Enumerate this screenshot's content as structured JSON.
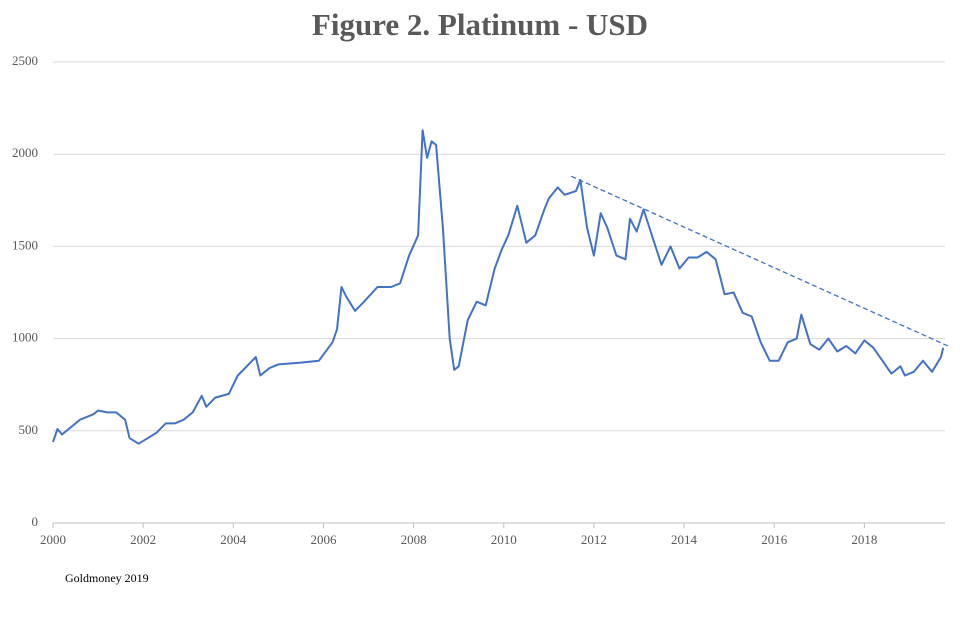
{
  "chart_data": {
    "type": "line",
    "title": "Figure 2. Platinum - USD",
    "source": "Goldmoney 2019",
    "x": [
      2000.0,
      2000.1,
      2000.2,
      2000.4,
      2000.6,
      2000.9,
      2001.0,
      2001.2,
      2001.4,
      2001.6,
      2001.7,
      2001.9,
      2002.1,
      2002.3,
      2002.5,
      2002.7,
      2002.9,
      2003.1,
      2003.3,
      2003.4,
      2003.6,
      2003.9,
      2004.1,
      2004.3,
      2004.5,
      2004.6,
      2004.8,
      2005.0,
      2005.5,
      2005.9,
      2006.2,
      2006.3,
      2006.4,
      2006.5,
      2006.7,
      2006.9,
      2007.2,
      2007.5,
      2007.7,
      2007.9,
      2008.1,
      2008.2,
      2008.3,
      2008.4,
      2008.5,
      2008.65,
      2008.8,
      2008.9,
      2009.0,
      2009.2,
      2009.4,
      2009.6,
      2009.8,
      2009.95,
      2010.1,
      2010.3,
      2010.5,
      2010.7,
      2010.9,
      2011.0,
      2011.2,
      2011.35,
      2011.6,
      2011.7,
      2011.85,
      2012.0,
      2012.15,
      2012.3,
      2012.5,
      2012.7,
      2012.8,
      2012.95,
      2013.1,
      2013.3,
      2013.5,
      2013.7,
      2013.9,
      2014.1,
      2014.3,
      2014.5,
      2014.7,
      2014.9,
      2015.1,
      2015.3,
      2015.5,
      2015.7,
      2015.9,
      2016.1,
      2016.3,
      2016.5,
      2016.6,
      2016.8,
      2017.0,
      2017.2,
      2017.4,
      2017.6,
      2017.8,
      2018.0,
      2018.2,
      2018.4,
      2018.6,
      2018.8,
      2018.9,
      2019.1,
      2019.3,
      2019.5,
      2019.7,
      2019.75
    ],
    "series": [
      {
        "name": "Platinum",
        "color": "#4472c4",
        "values": [
          440,
          510,
          480,
          520,
          560,
          590,
          610,
          600,
          600,
          560,
          460,
          430,
          460,
          490,
          540,
          540,
          560,
          600,
          690,
          630,
          680,
          700,
          800,
          850,
          900,
          800,
          840,
          860,
          870,
          880,
          980,
          1050,
          1280,
          1230,
          1150,
          1200,
          1280,
          1280,
          1300,
          1450,
          1560,
          2130,
          1980,
          2070,
          2050,
          1600,
          1000,
          830,
          850,
          1100,
          1200,
          1180,
          1380,
          1480,
          1560,
          1720,
          1520,
          1560,
          1700,
          1760,
          1820,
          1780,
          1800,
          1860,
          1600,
          1450,
          1680,
          1600,
          1450,
          1430,
          1650,
          1580,
          1700,
          1550,
          1400,
          1500,
          1380,
          1440,
          1440,
          1470,
          1430,
          1240,
          1250,
          1140,
          1120,
          980,
          880,
          880,
          980,
          1000,
          1130,
          970,
          940,
          1000,
          930,
          960,
          920,
          990,
          950,
          880,
          810,
          850,
          800,
          820,
          880,
          820,
          900,
          950
        ]
      }
    ],
    "trendline": {
      "x": [
        2011.5,
        2019.9
      ],
      "y": [
        1880,
        955
      ],
      "color": "#4472c4"
    },
    "xlim": [
      2000,
      2019.9
    ],
    "xticks": [
      2000,
      2002,
      2004,
      2006,
      2008,
      2010,
      2012,
      2014,
      2016,
      2018
    ],
    "ylim": [
      0,
      2500
    ],
    "yticks": [
      0,
      500,
      1000,
      1500,
      2000,
      2500
    ],
    "grid": true
  }
}
